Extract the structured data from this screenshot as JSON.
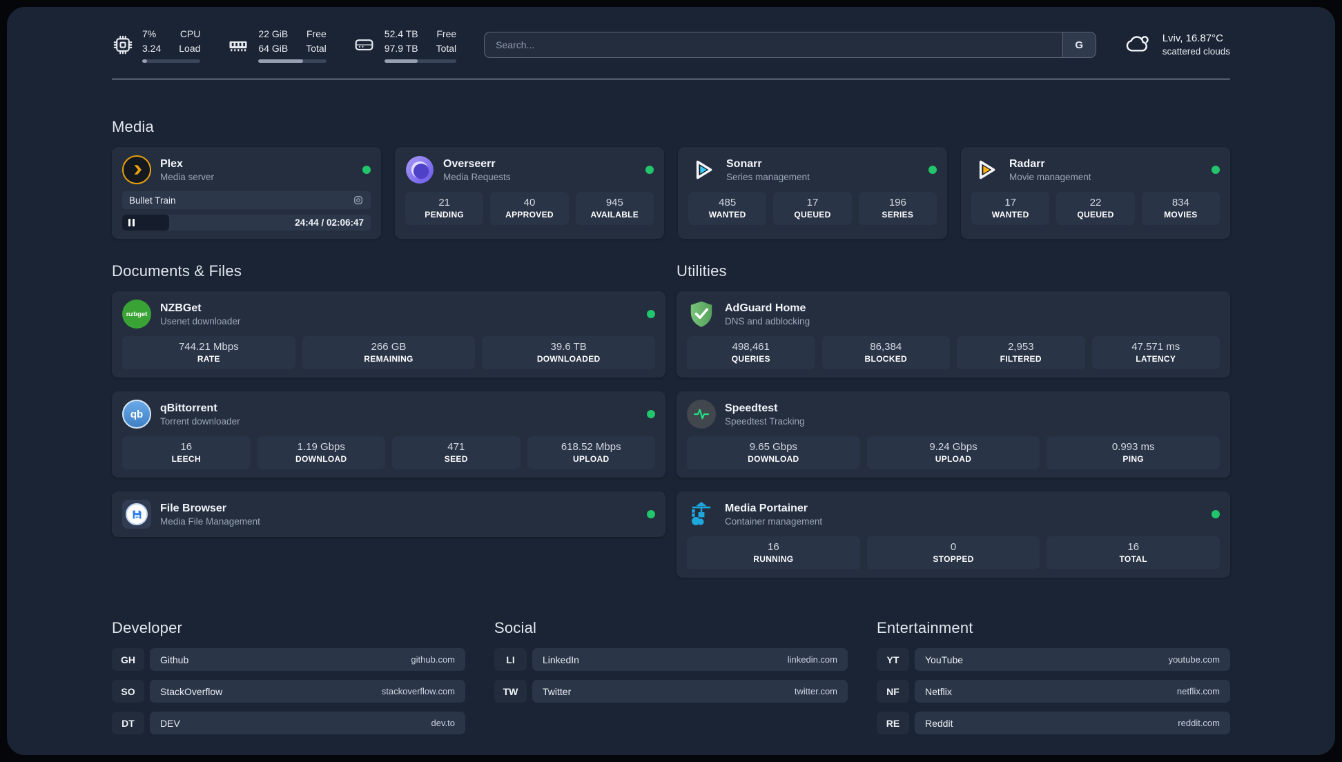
{
  "topbar": {
    "resources": [
      {
        "values": [
          "7%",
          "3.24"
        ],
        "labels": [
          "CPU",
          "Load"
        ],
        "progress": 8
      },
      {
        "values": [
          "22 GiB",
          "64 GiB"
        ],
        "labels": [
          "Free",
          "Total"
        ],
        "progress": 66
      },
      {
        "values": [
          "52.4 TB",
          "97.9 TB"
        ],
        "labels": [
          "Free",
          "Total"
        ],
        "progress": 46
      }
    ],
    "search": {
      "placeholder": "Search...",
      "engine_label": "G"
    },
    "weather": {
      "location": "Lviv, 16.87°C",
      "condition": "scattered clouds"
    }
  },
  "sections": {
    "media": {
      "title": "Media",
      "cards": [
        {
          "name": "Plex",
          "subtitle": "Media server",
          "status": "online",
          "player": {
            "track": "Bullet Train",
            "time": "24:44 / 02:06:47",
            "progress": 19
          }
        },
        {
          "name": "Overseerr",
          "subtitle": "Media Requests",
          "status": "online",
          "stats": [
            {
              "value": "21",
              "label": "PENDING"
            },
            {
              "value": "40",
              "label": "APPROVED"
            },
            {
              "value": "945",
              "label": "AVAILABLE"
            }
          ]
        },
        {
          "name": "Sonarr",
          "subtitle": "Series management",
          "status": "online",
          "stats": [
            {
              "value": "485",
              "label": "WANTED"
            },
            {
              "value": "17",
              "label": "QUEUED"
            },
            {
              "value": "196",
              "label": "SERIES"
            }
          ]
        },
        {
          "name": "Radarr",
          "subtitle": "Movie management",
          "status": "online",
          "stats": [
            {
              "value": "17",
              "label": "WANTED"
            },
            {
              "value": "22",
              "label": "QUEUED"
            },
            {
              "value": "834",
              "label": "MOVIES"
            }
          ]
        }
      ]
    },
    "documents": {
      "title": "Documents & Files",
      "cards": [
        {
          "name": "NZBGet",
          "subtitle": "Usenet downloader",
          "status": "online",
          "icon_text": "nzbget",
          "stats": [
            {
              "value": "744.21 Mbps",
              "label": "RATE"
            },
            {
              "value": "266 GB",
              "label": "REMAINING"
            },
            {
              "value": "39.6 TB",
              "label": "DOWNLOADED"
            }
          ]
        },
        {
          "name": "qBittorrent",
          "subtitle": "Torrent downloader",
          "status": "online",
          "icon_text": "qb",
          "stats": [
            {
              "value": "16",
              "label": "LEECH"
            },
            {
              "value": "1.19 Gbps",
              "label": "DOWNLOAD"
            },
            {
              "value": "471",
              "label": "SEED"
            },
            {
              "value": "618.52 Mbps",
              "label": "UPLOAD"
            }
          ]
        },
        {
          "name": "File Browser",
          "subtitle": "Media File Management",
          "status": "online",
          "stats": []
        }
      ]
    },
    "utilities": {
      "title": "Utilities",
      "cards": [
        {
          "name": "AdGuard Home",
          "subtitle": "DNS and adblocking",
          "stats": [
            {
              "value": "498,461",
              "label": "QUERIES"
            },
            {
              "value": "86,384",
              "label": "BLOCKED"
            },
            {
              "value": "2,953",
              "label": "FILTERED"
            },
            {
              "value": "47.571 ms",
              "label": "LATENCY"
            }
          ]
        },
        {
          "name": "Speedtest",
          "subtitle": "Speedtest Tracking",
          "stats": [
            {
              "value": "9.65 Gbps",
              "label": "DOWNLOAD"
            },
            {
              "value": "9.24 Gbps",
              "label": "UPLOAD"
            },
            {
              "value": "0.993 ms",
              "label": "PING"
            }
          ]
        },
        {
          "name": "Media Portainer",
          "subtitle": "Container management",
          "status": "online",
          "stats": [
            {
              "value": "16",
              "label": "RUNNING"
            },
            {
              "value": "0",
              "label": "STOPPED"
            },
            {
              "value": "16",
              "label": "TOTAL"
            }
          ]
        }
      ]
    },
    "bookmarks": [
      {
        "title": "Developer",
        "links": [
          {
            "abbr": "GH",
            "name": "Github",
            "url": "github.com"
          },
          {
            "abbr": "SO",
            "name": "StackOverflow",
            "url": "stackoverflow.com"
          },
          {
            "abbr": "DT",
            "name": "DEV",
            "url": "dev.to"
          }
        ]
      },
      {
        "title": "Social",
        "links": [
          {
            "abbr": "LI",
            "name": "LinkedIn",
            "url": "linkedin.com"
          },
          {
            "abbr": "TW",
            "name": "Twitter",
            "url": "twitter.com"
          }
        ]
      },
      {
        "title": "Entertainment",
        "links": [
          {
            "abbr": "YT",
            "name": "YouTube",
            "url": "youtube.com"
          },
          {
            "abbr": "NF",
            "name": "Netflix",
            "url": "netflix.com"
          },
          {
            "abbr": "RE",
            "name": "Reddit",
            "url": "reddit.com"
          }
        ]
      }
    ]
  },
  "colors": {
    "status_green": "#22c46c",
    "plex_amber": "#e8a00c",
    "sonarr_blue": "#38c6f4",
    "radarr_yellow": "#ffb012",
    "adguard_green": "#6ab86c",
    "portainer_blue": "#1da7dd",
    "speedtest_green": "#1de782",
    "filebrowser_blue": "#2e7de9",
    "nzbget_green": "#3aa336",
    "qbittorrent_blue": "#4a8fd0"
  }
}
